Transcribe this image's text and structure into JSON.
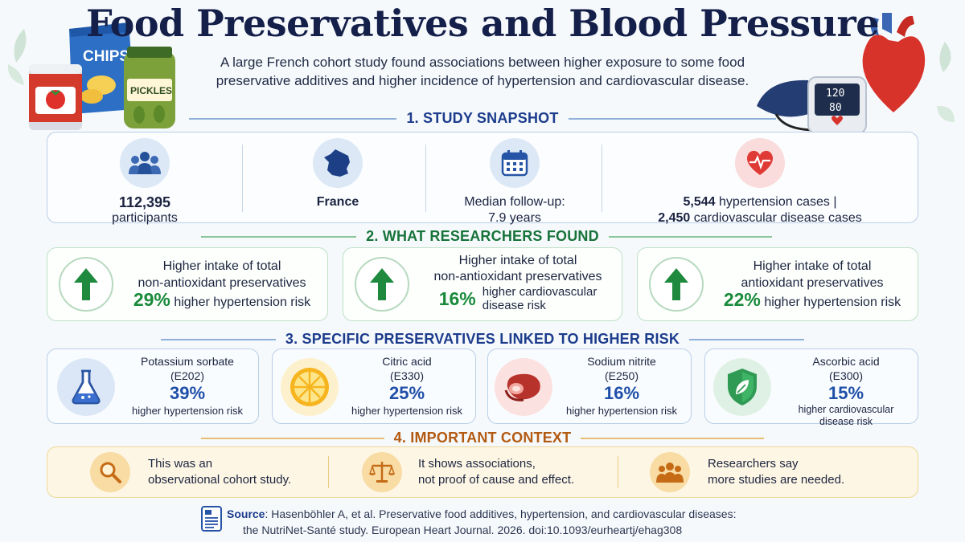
{
  "header": {
    "title": "Food Preservatives and Blood Pressure",
    "subtitle": "A large French cohort study found associations between higher exposure to some food preservative additives and higher incidence of hypertension and cardiovascular disease."
  },
  "decor": {
    "chips_label": "CHIPS",
    "pickles_label": "PICKLES",
    "monitor_sys": "120",
    "monitor_dia": "80"
  },
  "snapshot": {
    "heading": "1. STUDY SNAPSHOT",
    "participants_value": "112,395",
    "participants_label": "participants",
    "country": "France",
    "followup_label": "Median follow-up:",
    "followup_value": "7.9 years",
    "hyp_value": "5,544",
    "hyp_label": "hypertension cases |",
    "cvd_value": "2,450",
    "cvd_label": "cardiovascular disease cases"
  },
  "findings": {
    "heading": "2. WHAT RESEARCHERS FOUND",
    "items": [
      {
        "line1": "Higher intake of total",
        "line2": "non-antioxidant preservatives",
        "pct": "29%",
        "risk": "higher hypertension risk",
        "risk2": ""
      },
      {
        "line1": "Higher intake of total",
        "line2": "non-antioxidant preservatives",
        "pct": "16%",
        "risk": "higher cardiovascular",
        "risk2": "disease risk"
      },
      {
        "line1": "Higher intake of total",
        "line2": "antioxidant preservatives",
        "pct": "22%",
        "risk": "higher hypertension risk",
        "risk2": ""
      }
    ]
  },
  "specific": {
    "heading": "3. SPECIFIC PRESERVATIVES LINKED TO HIGHER RISK",
    "items": [
      {
        "name": "Potassium sorbate",
        "code": "(E202)",
        "pct": "39%",
        "risk": "higher hypertension risk",
        "risk2": ""
      },
      {
        "name": "Citric acid",
        "code": "(E330)",
        "pct": "25%",
        "risk": "higher hypertension risk",
        "risk2": ""
      },
      {
        "name": "Sodium nitrite",
        "code": "(E250)",
        "pct": "16%",
        "risk": "higher hypertension risk",
        "risk2": ""
      },
      {
        "name": "Ascorbic acid",
        "code": "(E300)",
        "pct": "15%",
        "risk": "higher cardiovascular",
        "risk2": "disease risk"
      }
    ]
  },
  "context": {
    "heading": "4. IMPORTANT CONTEXT",
    "items": [
      {
        "line1": "This was an",
        "line2": "observational cohort study."
      },
      {
        "line1": "It shows associations,",
        "line2": "not proof of cause and effect."
      },
      {
        "line1": "Researchers say",
        "line2": "more studies are needed."
      }
    ]
  },
  "source": {
    "label": "Source",
    "line1": ": Hasenböhler A, et al. Preservative food additives, hypertension, and cardiovascular diseases:",
    "line2": "the NutriNet-Santé study. European Heart Journal. 2026. doi:10.1093/eurheartj/ehag308"
  },
  "colors": {
    "navy": "#15204a",
    "section_blue": "#1c3c8c",
    "section_green": "#17733a",
    "section_orange": "#b35a12",
    "green": "#198a3c",
    "blue_pct": "#1f4fa8"
  }
}
